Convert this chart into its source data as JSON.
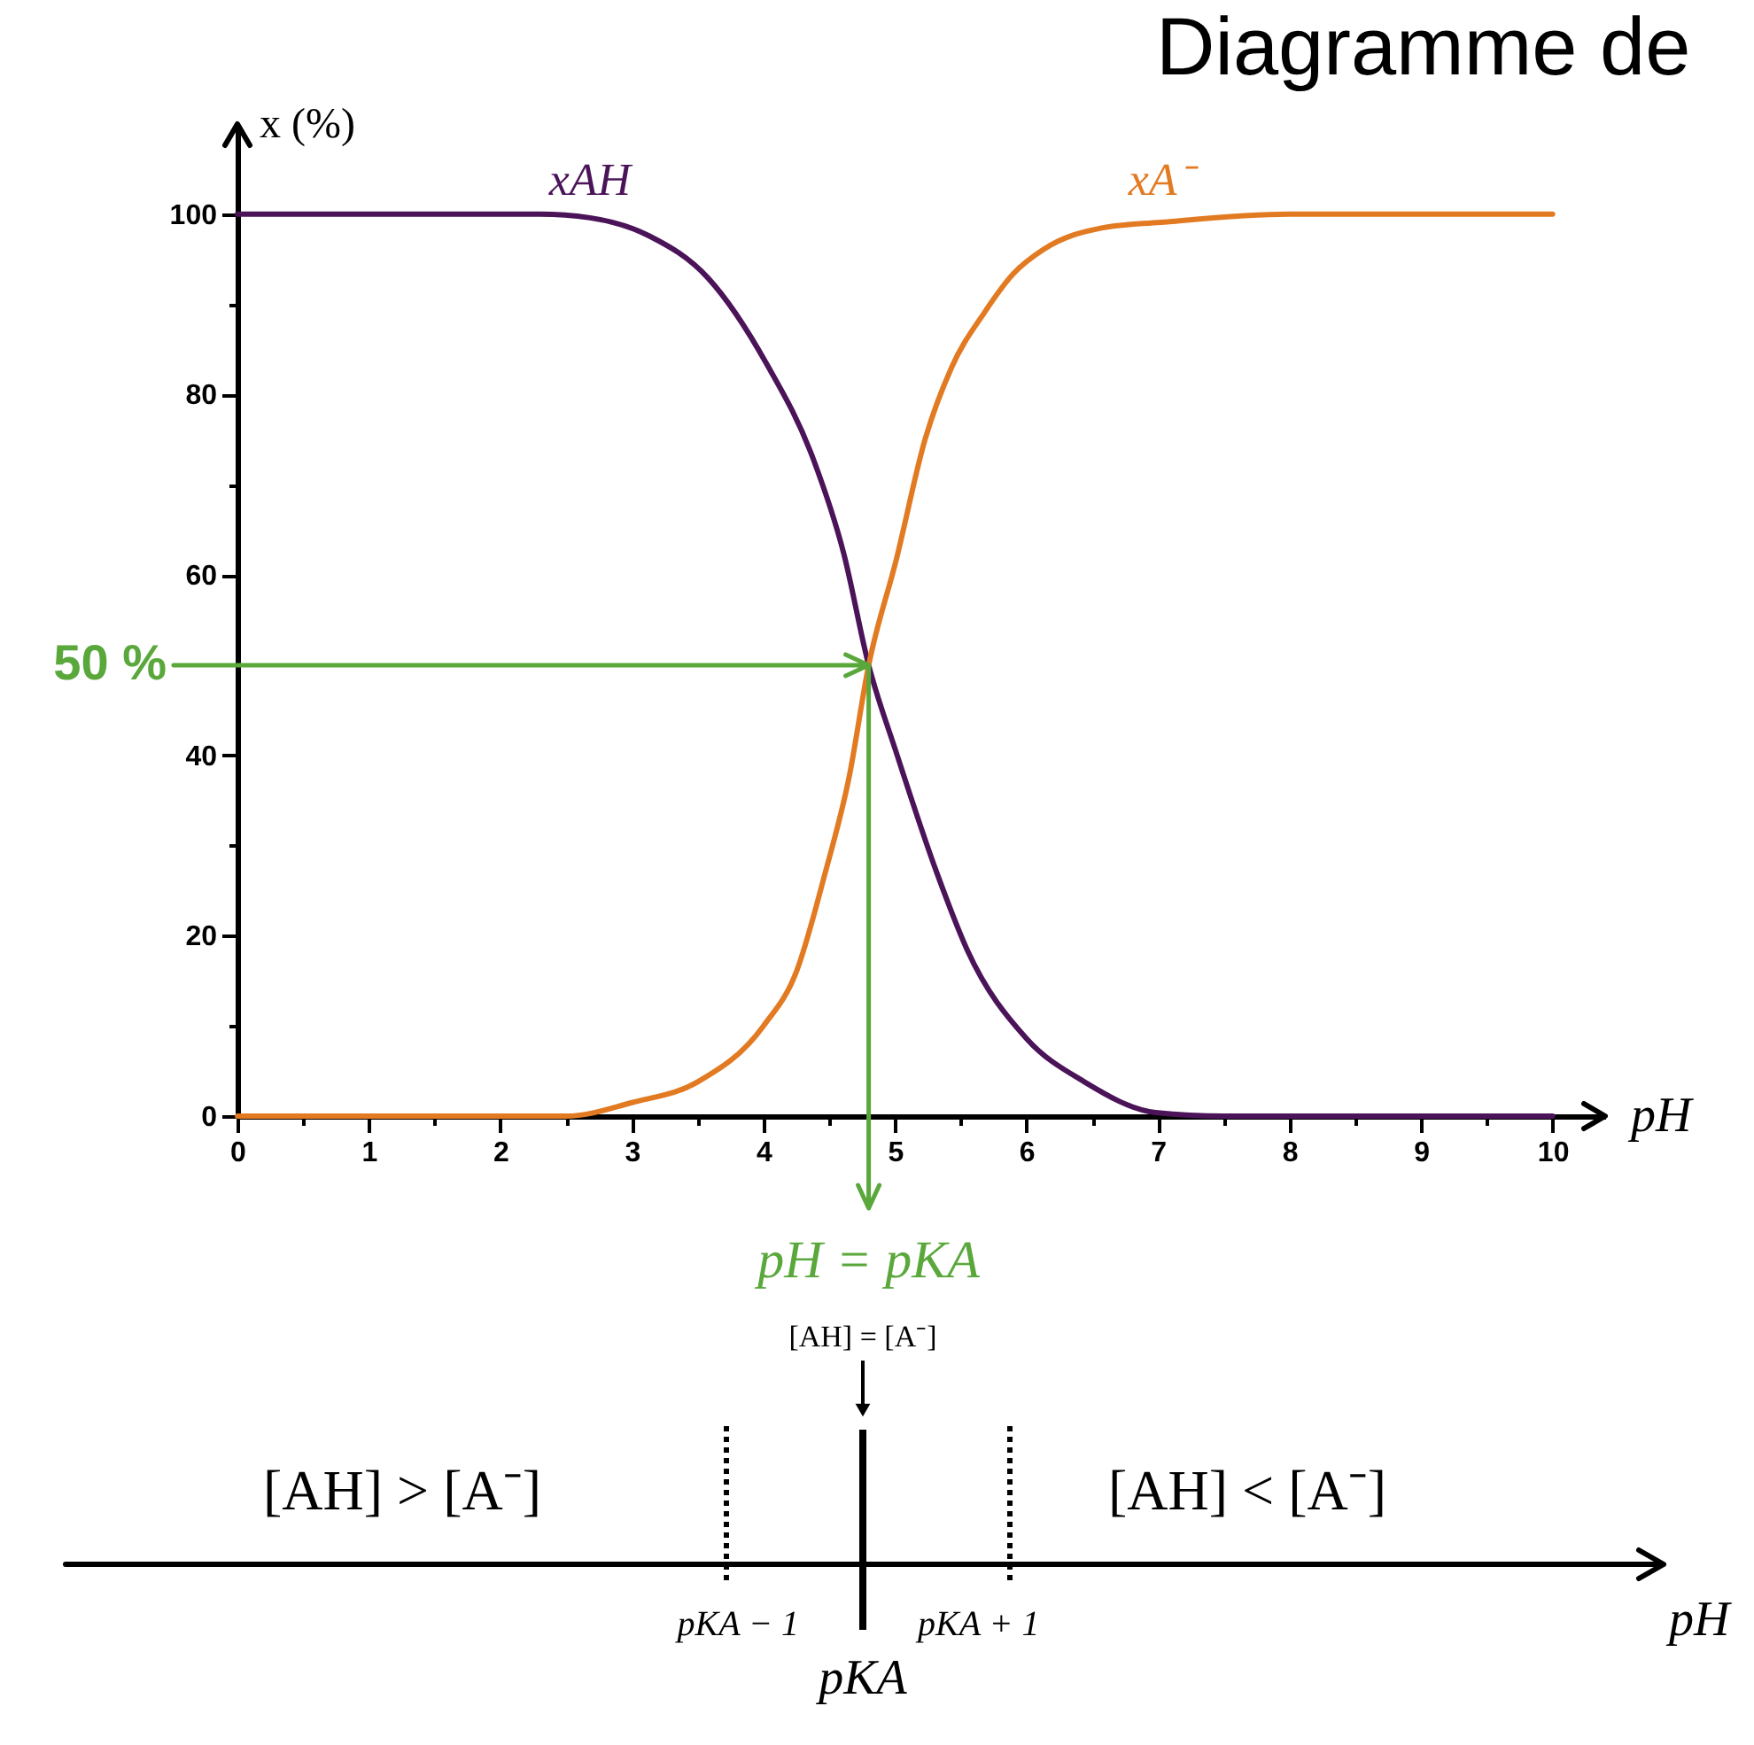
{
  "chart_data": [
    {
      "type": "line",
      "title": "Diagramme de",
      "xlabel": "pH",
      "ylabel": "x (%)",
      "xlim": [
        0,
        10.4
      ],
      "ylim": [
        0,
        110
      ],
      "xticks": [
        0,
        {
          "value": 0.5,
          "label": null
        },
        1,
        {
          "value": 1.5,
          "label": null
        },
        2,
        {
          "value": 2.5,
          "label": null
        },
        3,
        {
          "value": 3.5,
          "label": null
        },
        4,
        {
          "value": 4.5,
          "label": null
        },
        5,
        {
          "value": 5.5,
          "label": null
        },
        6,
        {
          "value": 6.5,
          "label": null
        },
        7,
        {
          "value": 7.5,
          "label": null
        },
        8,
        {
          "value": 8.5,
          "label": null
        },
        9,
        {
          "value": 9.5,
          "label": null
        },
        10
      ],
      "yticks": [
        0,
        {
          "value": 10,
          "label": null
        },
        20,
        {
          "value": 30,
          "label": null
        },
        40,
        {
          "value": 50,
          "label": null
        },
        60,
        {
          "value": 70,
          "label": null
        },
        80,
        {
          "value": 90,
          "label": null
        },
        100
      ],
      "grid": false,
      "series": [
        {
          "name": "xAH",
          "color": "#4b1459",
          "x": [
            0,
            1,
            2,
            2.3,
            2.68,
            3.13,
            3.58,
            4.02,
            4.38,
            4.61,
            4.8,
            5.01,
            5.32,
            5.55,
            6.0,
            6.44,
            6.98,
            7.5,
            8,
            9,
            10
          ],
          "values": [
            100,
            100,
            100,
            100,
            99.6,
            97.6,
            92.9,
            83.5,
            72.8,
            62.4,
            50,
            40.3,
            26.9,
            18.4,
            8.6,
            3.8,
            0.4,
            0,
            0,
            0,
            0
          ]
        },
        {
          "name": "xA⁻",
          "color": "#e27a22",
          "x": [
            0,
            1,
            2,
            2.5,
            3.0,
            3.5,
            4.0,
            4.25,
            4.47,
            4.65,
            4.8,
            5.01,
            5.23,
            5.43,
            5.68,
            5.9,
            6.13,
            6.58,
            7.02,
            8,
            9,
            10
          ],
          "values": [
            0,
            0,
            0,
            0,
            1.5,
            3.8,
            10,
            16,
            27,
            37.5,
            50,
            61.7,
            75.1,
            83,
            89.1,
            93.4,
            96.1,
            98.5,
            99.1,
            100,
            100,
            100
          ]
        }
      ],
      "ref_lines": [
        {
          "axis": "y",
          "value": 50,
          "label": "50 %",
          "color": "#5aa83c"
        },
        {
          "axis": "x",
          "value": 4.8,
          "label": "pH = pKA",
          "color": "#5aa83c"
        }
      ]
    },
    {
      "type": "other",
      "xlabel": "pH",
      "annotations": [
        "[AH] = [A⁻]",
        "[AH] > [A⁻]",
        "[AH] < [A⁻]",
        "pKA − 1",
        "pKA + 1",
        "pKA"
      ]
    }
  ]
}
